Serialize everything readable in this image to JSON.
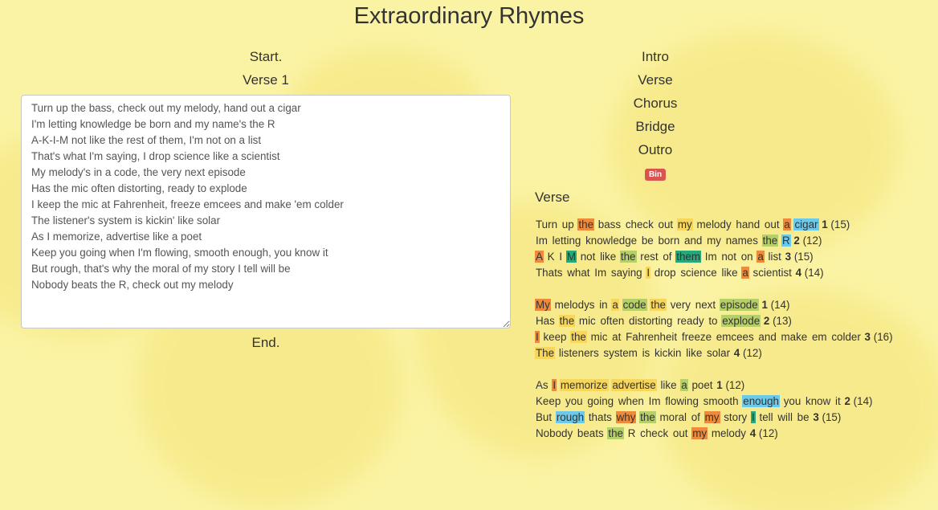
{
  "app": {
    "title": "Extraordinary Rhymes"
  },
  "colors": {
    "orange": "#f08a3b",
    "yellow": "#f7d65c",
    "green": "#b6cf69",
    "blue": "#6cc9ea",
    "teal": "#25a87a",
    "bin": "#d9534f"
  },
  "editor": {
    "start_label": "Start.",
    "section_label": "Verse 1",
    "end_label": "End.",
    "lyrics": "Turn up the bass, check out my melody, hand out a cigar\nI'm letting knowledge be born and my name's the R\nA-K-I-M not like the rest of them, I'm not on a list\nThat's what I'm saying, I drop science like a scientist\nMy melody's in a code, the very next episode\nHas the mic often distorting, ready to explode\nI keep the mic at Fahrenheit, freeze emcees and make 'em colder\nThe listener's system is kickin' like solar\nAs I memorize, advertise like a poet\nKeep you going when I'm flowing, smooth enough, you know it\nBut rough, that's why the moral of my story I tell will be\nNobody beats the R, check out my melody"
  },
  "sections": [
    "Intro",
    "Verse",
    "Chorus",
    "Bridge",
    "Outro"
  ],
  "bin_label": "Bin",
  "analysis": {
    "title": "Verse",
    "stanzas": [
      [
        {
          "words": [
            [
              "Turn",
              ""
            ],
            [
              "up",
              ""
            ],
            [
              "the",
              "o"
            ],
            [
              "bass",
              ""
            ],
            [
              "check",
              ""
            ],
            [
              "out",
              ""
            ],
            [
              "my",
              "y"
            ],
            [
              "melody",
              ""
            ],
            [
              "hand",
              ""
            ],
            [
              "out",
              ""
            ],
            [
              "a",
              "o"
            ],
            [
              "cigar",
              "b"
            ]
          ],
          "n": "1",
          "syl": "(15)"
        },
        {
          "words": [
            [
              "Im",
              ""
            ],
            [
              "letting",
              ""
            ],
            [
              "knowledge",
              ""
            ],
            [
              "be",
              ""
            ],
            [
              "born",
              ""
            ],
            [
              "and",
              ""
            ],
            [
              "my",
              ""
            ],
            [
              "names",
              ""
            ],
            [
              "the",
              "g"
            ],
            [
              "R",
              "b"
            ]
          ],
          "n": "2",
          "syl": "(12)"
        },
        {
          "words": [
            [
              "A",
              "o"
            ],
            [
              "K",
              ""
            ],
            [
              "I",
              ""
            ],
            [
              "M",
              "t"
            ],
            [
              "not",
              ""
            ],
            [
              "like",
              ""
            ],
            [
              "the",
              "g"
            ],
            [
              "rest",
              ""
            ],
            [
              "of",
              ""
            ],
            [
              "them",
              "t"
            ],
            [
              "Im",
              ""
            ],
            [
              "not",
              ""
            ],
            [
              "on",
              ""
            ],
            [
              "a",
              "o"
            ],
            [
              "list",
              ""
            ]
          ],
          "n": "3",
          "syl": "(15)"
        },
        {
          "words": [
            [
              "Thats",
              ""
            ],
            [
              "what",
              ""
            ],
            [
              "Im",
              ""
            ],
            [
              "saying",
              ""
            ],
            [
              "I",
              "y"
            ],
            [
              "drop",
              ""
            ],
            [
              "science",
              ""
            ],
            [
              "like",
              ""
            ],
            [
              "a",
              "o"
            ],
            [
              "scientist",
              ""
            ]
          ],
          "n": "4",
          "syl": "(14)"
        }
      ],
      [
        {
          "words": [
            [
              "My",
              "o"
            ],
            [
              "melodys",
              ""
            ],
            [
              "in",
              ""
            ],
            [
              "a",
              "y"
            ],
            [
              "code",
              "g"
            ],
            [
              "the",
              "y"
            ],
            [
              "very",
              ""
            ],
            [
              "next",
              ""
            ],
            [
              "episode",
              "g"
            ]
          ],
          "n": "1",
          "syl": "(14)"
        },
        {
          "words": [
            [
              "Has",
              ""
            ],
            [
              "the",
              "y"
            ],
            [
              "mic",
              ""
            ],
            [
              "often",
              ""
            ],
            [
              "distorting",
              ""
            ],
            [
              "ready",
              ""
            ],
            [
              "to",
              ""
            ],
            [
              "explode",
              "g"
            ]
          ],
          "n": "2",
          "syl": "(13)"
        },
        {
          "words": [
            [
              "I",
              "o"
            ],
            [
              "keep",
              ""
            ],
            [
              "the",
              "y"
            ],
            [
              "mic",
              ""
            ],
            [
              "at",
              ""
            ],
            [
              "Fahrenheit",
              ""
            ],
            [
              "freeze",
              ""
            ],
            [
              "emcees",
              ""
            ],
            [
              "and",
              ""
            ],
            [
              "make",
              ""
            ],
            [
              "em",
              ""
            ],
            [
              "colder",
              ""
            ]
          ],
          "n": "3",
          "syl": "(16)"
        },
        {
          "words": [
            [
              "The",
              "y"
            ],
            [
              "listeners",
              ""
            ],
            [
              "system",
              ""
            ],
            [
              "is",
              ""
            ],
            [
              "kickin",
              ""
            ],
            [
              "like",
              ""
            ],
            [
              "solar",
              ""
            ]
          ],
          "n": "4",
          "syl": "(12)"
        }
      ],
      [
        {
          "words": [
            [
              "As",
              ""
            ],
            [
              "I",
              "o"
            ],
            [
              "memorize",
              "y"
            ],
            [
              "advertise",
              "y"
            ],
            [
              "like",
              ""
            ],
            [
              "a",
              "g"
            ],
            [
              "poet",
              ""
            ]
          ],
          "n": "1",
          "syl": "(12)"
        },
        {
          "words": [
            [
              "Keep",
              ""
            ],
            [
              "you",
              ""
            ],
            [
              "going",
              ""
            ],
            [
              "when",
              ""
            ],
            [
              "Im",
              ""
            ],
            [
              "flowing",
              ""
            ],
            [
              "smooth",
              ""
            ],
            [
              "enough",
              "b"
            ],
            [
              "you",
              ""
            ],
            [
              "know",
              ""
            ],
            [
              "it",
              ""
            ]
          ],
          "n": "2",
          "syl": "(14)"
        },
        {
          "words": [
            [
              "But",
              ""
            ],
            [
              "rough",
              "b"
            ],
            [
              "thats",
              ""
            ],
            [
              "why",
              "o"
            ],
            [
              "the",
              "g"
            ],
            [
              "moral",
              ""
            ],
            [
              "of",
              ""
            ],
            [
              "my",
              "o"
            ],
            [
              "story",
              ""
            ],
            [
              "I",
              "t"
            ],
            [
              "tell",
              ""
            ],
            [
              "will",
              ""
            ],
            [
              "be",
              ""
            ]
          ],
          "n": "3",
          "syl": "(15)"
        },
        {
          "words": [
            [
              "Nobody",
              ""
            ],
            [
              "beats",
              ""
            ],
            [
              "the",
              "g"
            ],
            [
              "R",
              ""
            ],
            [
              "check",
              ""
            ],
            [
              "out",
              ""
            ],
            [
              "my",
              "o"
            ],
            [
              "melody",
              ""
            ]
          ],
          "n": "4",
          "syl": "(12)"
        }
      ]
    ]
  }
}
